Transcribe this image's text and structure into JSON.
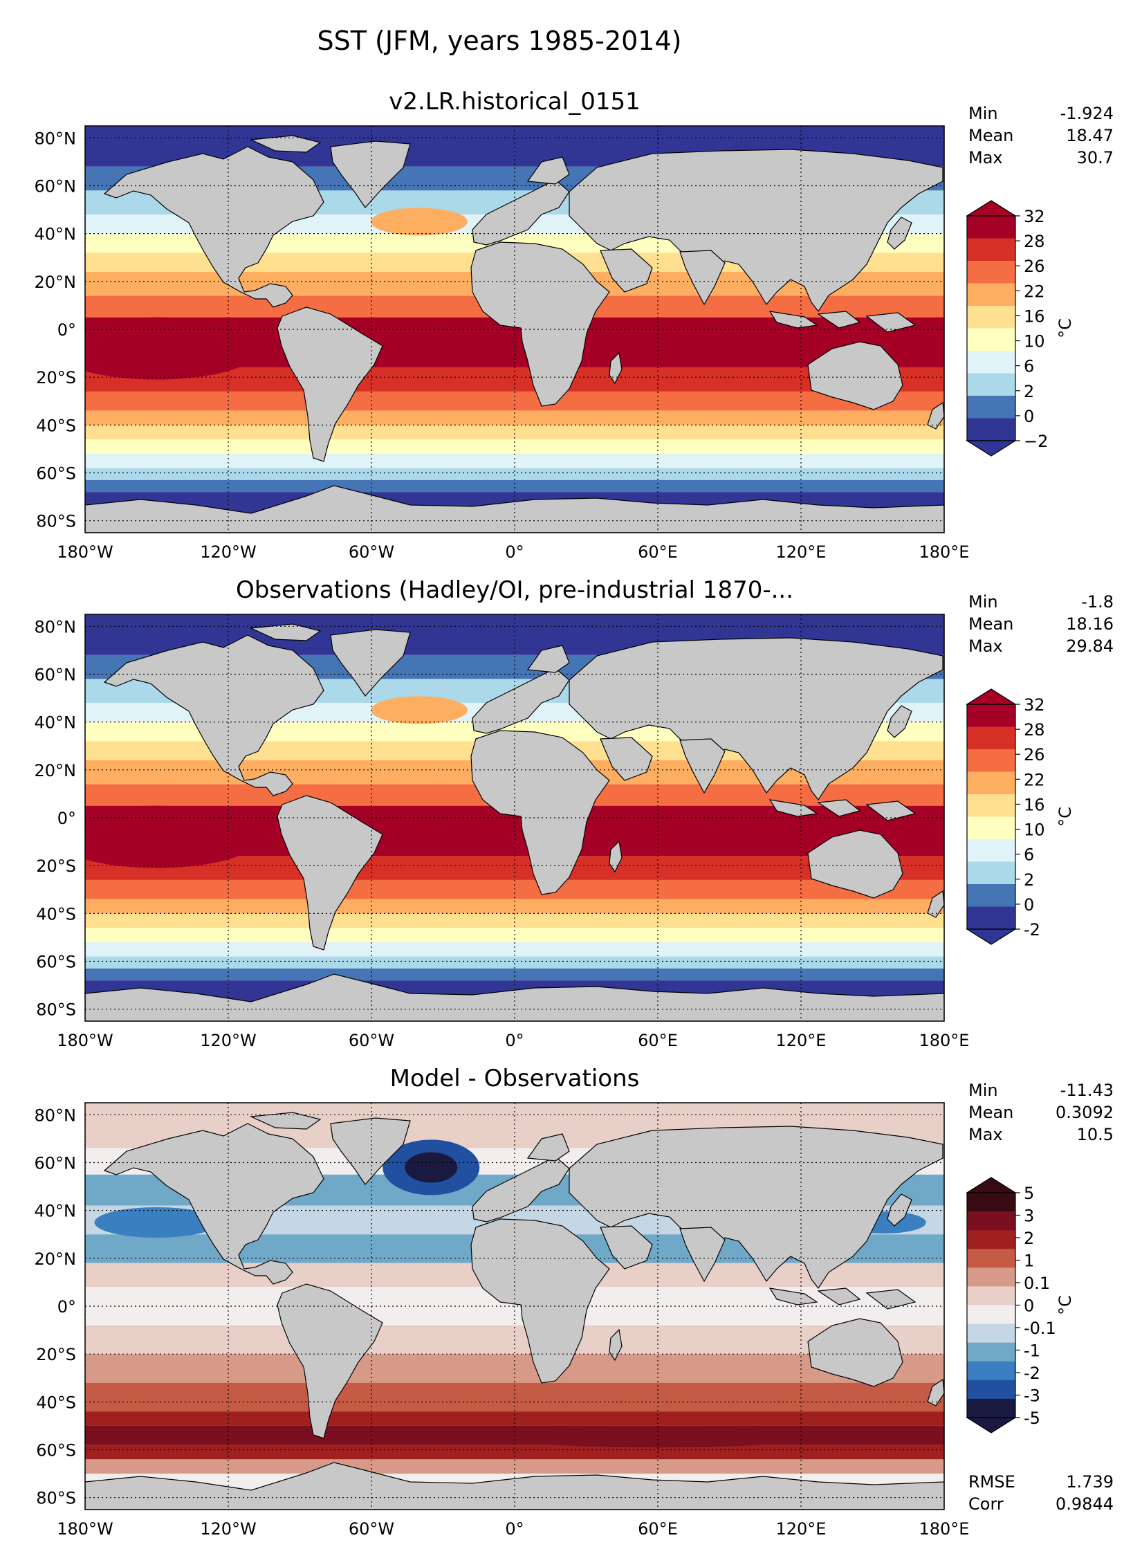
{
  "figure": {
    "title": "SST (JFM, years 1985-2014)"
  },
  "axes": {
    "lon_labels": [
      "180°W",
      "120°W",
      "60°W",
      "0°",
      "60°E",
      "120°E",
      "180°E"
    ],
    "lat_labels": [
      "80°N",
      "60°N",
      "40°N",
      "20°N",
      "0°",
      "20°S",
      "40°S",
      "60°S",
      "80°S"
    ],
    "lon_values": [
      -180,
      -120,
      -60,
      0,
      60,
      120,
      180
    ],
    "lat_values": [
      80,
      60,
      40,
      20,
      0,
      -20,
      -40,
      -60,
      -80
    ],
    "lat_range": [
      -85,
      85
    ],
    "lon_range": [
      -180,
      180
    ]
  },
  "colors": {
    "land": "#c8c8c8",
    "sst_scale": [
      "#313695",
      "#4575b4",
      "#abd9e9",
      "#e0f3f8",
      "#ffffbf",
      "#fee090",
      "#fdae61",
      "#f46d43",
      "#d73027",
      "#a50026"
    ],
    "diff_scale": [
      "#1a1a40",
      "#2150a0",
      "#3a7fbf",
      "#70a8c8",
      "#c5d7e4",
      "#f2eeee",
      "#e8cfc8",
      "#d89a88",
      "#c55a45",
      "#a02020",
      "#7a0f1f",
      "#3a0a12"
    ]
  },
  "panels": [
    {
      "title": "v2.LR.historical_0151",
      "stats": [
        {
          "label": "Min",
          "value": "-1.924"
        },
        {
          "label": "Mean",
          "value": "18.47"
        },
        {
          "label": "Max",
          "value": "30.7"
        }
      ],
      "colorbar": {
        "ticks": [
          "32",
          "28",
          "26",
          "22",
          "16",
          "10",
          "6",
          "2",
          "0",
          "−2"
        ],
        "unit": "°C",
        "extend": "both"
      }
    },
    {
      "title": "Observations (Hadley/OI, pre-industrial 1870-...",
      "stats": [
        {
          "label": "Min",
          "value": "-1.8"
        },
        {
          "label": "Mean",
          "value": "18.16"
        },
        {
          "label": "Max",
          "value": "29.84"
        }
      ],
      "colorbar": {
        "ticks": [
          "32",
          "28",
          "26",
          "22",
          "16",
          "10",
          "6",
          "2",
          "0",
          "-2"
        ],
        "unit": "°C",
        "extend": "both"
      }
    },
    {
      "title": "Model - Observations",
      "stats": [
        {
          "label": "Min",
          "value": "-11.43"
        },
        {
          "label": "Mean",
          "value": "0.3092"
        },
        {
          "label": "Max",
          "value": "10.5"
        }
      ],
      "bottom_stats": [
        {
          "label": "RMSE",
          "value": "1.739"
        },
        {
          "label": "Corr",
          "value": "0.9844"
        }
      ],
      "colorbar": {
        "ticks": [
          "5",
          "3",
          "2",
          "1",
          "0.1",
          "0",
          "-0.1",
          "-1",
          "-2",
          "-3",
          "-5"
        ],
        "unit": "°C",
        "extend": "both"
      }
    }
  ]
}
